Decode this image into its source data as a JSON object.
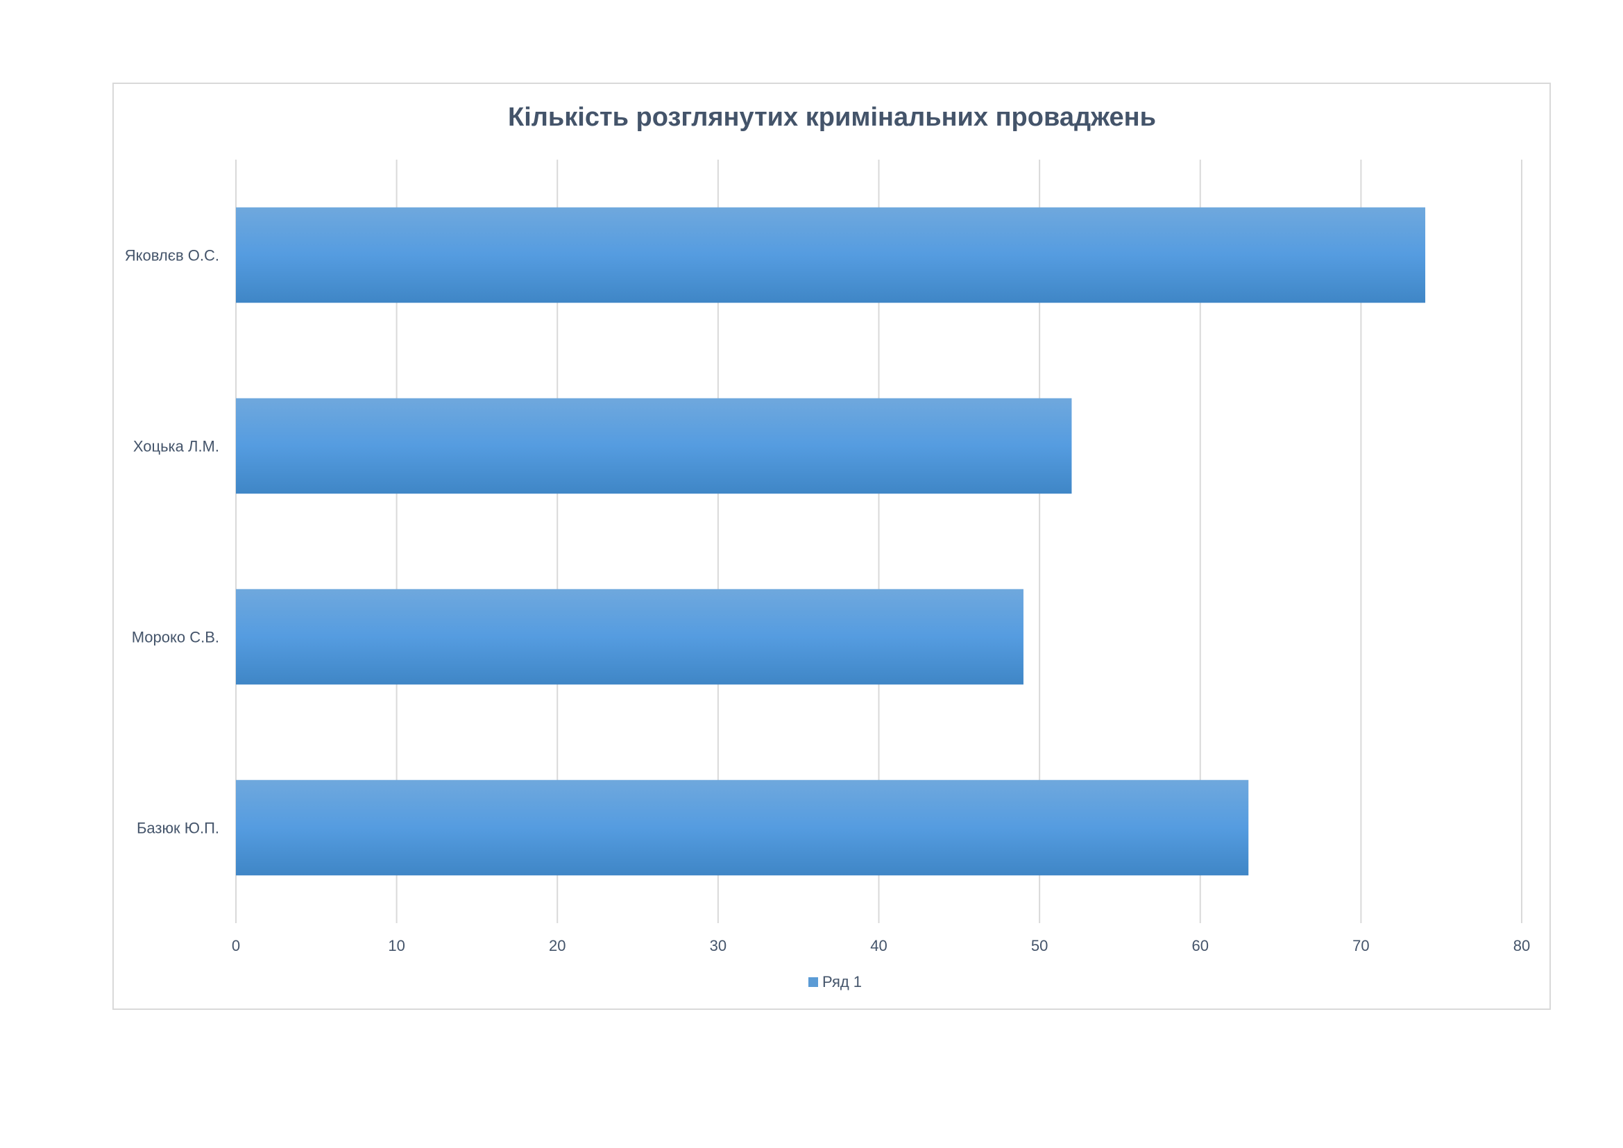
{
  "chart_data": {
    "type": "bar",
    "orientation": "horizontal",
    "title": "Кількість розглянутих кримінальних проваджень",
    "categories": [
      "Базюк Ю.П.",
      "Мороко С.В.",
      "Хоцька Л.М.",
      "Яковлєв О.С."
    ],
    "series": [
      {
        "name": "Ряд 1",
        "values": [
          63,
          49,
          52,
          74
        ],
        "color": "#5b9bd5"
      }
    ],
    "xlim": [
      0,
      80
    ],
    "xticks": [
      0,
      10,
      20,
      30,
      40,
      50,
      60,
      70,
      80
    ],
    "xlabel": "",
    "ylabel": "",
    "grid": true,
    "legend_position": "bottom"
  }
}
